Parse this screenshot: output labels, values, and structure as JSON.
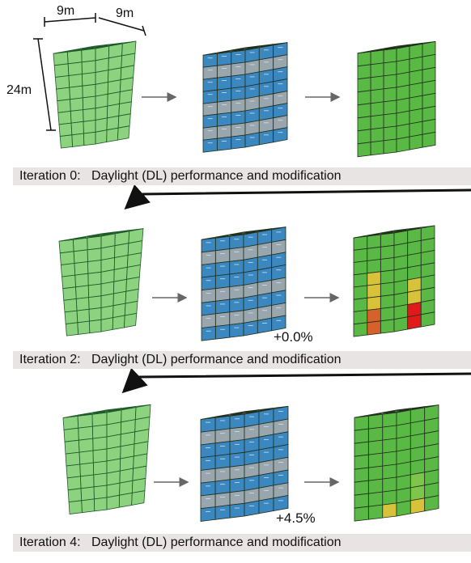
{
  "dimensions": {
    "width": "9m",
    "depth": "9m",
    "height": "24m"
  },
  "iterations": [
    {
      "caption": "Iteration 0:   Daylight (DL) performance and modification",
      "change": ""
    },
    {
      "caption": "Iteration 2:   Daylight (DL) performance and modification",
      "change": "+0.0%"
    },
    {
      "caption": "Iteration 4:   Daylight (DL) performance and modification",
      "change": "+4.5%"
    }
  ],
  "colors": {
    "massing_green": "#5fc04d",
    "glass_blue": "#3b87c0",
    "roof_gray": "#9a9a9a",
    "daylight_good": "#5ab845",
    "daylight_mid": "#d8c23a",
    "daylight_low": "#d7612b",
    "daylight_worst": "#e01a1a",
    "caption_bg": "#e7e4e3"
  }
}
